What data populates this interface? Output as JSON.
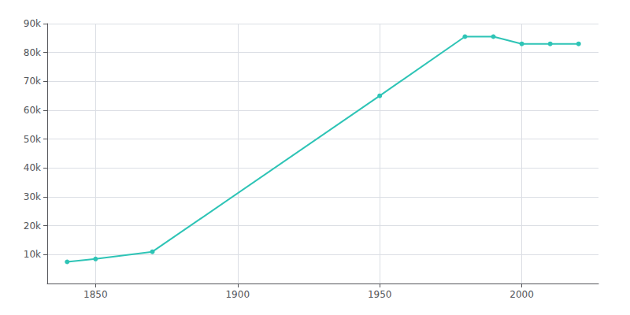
{
  "chart_data": {
    "type": "line",
    "x": [
      1840,
      1850,
      1870,
      1950,
      1980,
      1990,
      2000,
      2010,
      2020
    ],
    "values": [
      7500,
      8500,
      11000,
      65000,
      85500,
      85500,
      83000,
      83000,
      83000
    ],
    "color": "#2EC4B6",
    "marker": "circle",
    "xlim": [
      1833,
      2027
    ],
    "xticks": [
      1850,
      1900,
      1950,
      2000
    ],
    "ylim": [
      0,
      90000
    ],
    "yticks": [
      {
        "value": 10000,
        "label": "10k"
      },
      {
        "value": 20000,
        "label": "20k"
      },
      {
        "value": 30000,
        "label": "30k"
      },
      {
        "value": 40000,
        "label": "40k"
      },
      {
        "value": 50000,
        "label": "50k"
      },
      {
        "value": 60000,
        "label": "60k"
      },
      {
        "value": 70000,
        "label": "70k"
      },
      {
        "value": 80000,
        "label": "80k"
      },
      {
        "value": 90000,
        "label": "90k"
      }
    ],
    "grid": true
  }
}
